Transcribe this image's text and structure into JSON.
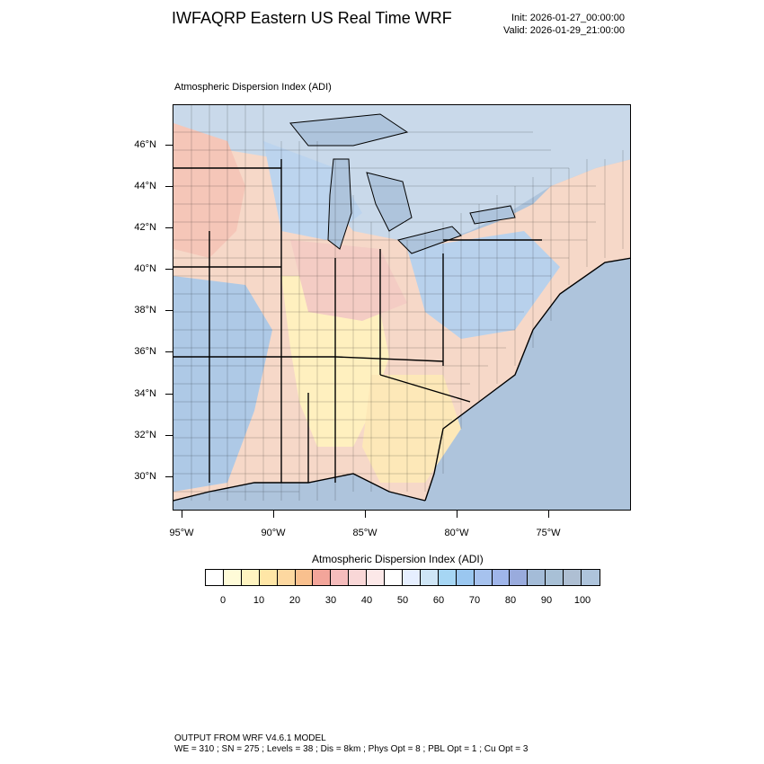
{
  "header": {
    "title": "IWFAQRP Eastern US Real Time WRF",
    "init": "Init: 2026-01-27_00:00:00",
    "valid": "Valid: 2026-01-29_21:00:00"
  },
  "map": {
    "subtitle": "Atmospheric Dispersion Index   (ADI)",
    "lat_labels": [
      "46°N",
      "44°N",
      "42°N",
      "40°N",
      "38°N",
      "36°N",
      "34°N",
      "32°N",
      "30°N"
    ],
    "lon_labels": [
      "95°W",
      "90°W",
      "85°W",
      "80°W",
      "75°W"
    ],
    "water_color": "#aec4dc",
    "land_colors": {
      "low": "#fff4c8",
      "mid_low": "#f6d2a6",
      "mid": "#f5c6b8",
      "mid_high": "#fbe9e9",
      "high": "#c5def2",
      "very_high": "#9fbfe4"
    }
  },
  "colorbar": {
    "title": "Atmospheric Dispersion Index  (ADI)",
    "colors": [
      "#ffffff",
      "#fffbd8",
      "#fff4c0",
      "#ffe6a6",
      "#fdd8a0",
      "#f9c08e",
      "#f3a59a",
      "#f6bcbc",
      "#f9d7d7",
      "#fce8e8",
      "#ffffff",
      "#e6efff",
      "#cfe6f6",
      "#a6d6f4",
      "#9ac7f0",
      "#a6c2ee",
      "#9fb5ea",
      "#99abdd",
      "#a4bcd8",
      "#a8c0d6",
      "#aebfd3",
      "#aec4dc"
    ],
    "labels": [
      "0",
      "10",
      "20",
      "30",
      "40",
      "50",
      "60",
      "70",
      "80",
      "90",
      "100"
    ]
  },
  "footer": {
    "line1": "OUTPUT FROM WRF V4.6.1 MODEL",
    "line2": "WE = 310 ; SN = 275 ; Levels = 38 ; Dis = 8km ; Phys Opt = 8 ; PBL Opt = 1 ; Cu Opt = 3"
  }
}
